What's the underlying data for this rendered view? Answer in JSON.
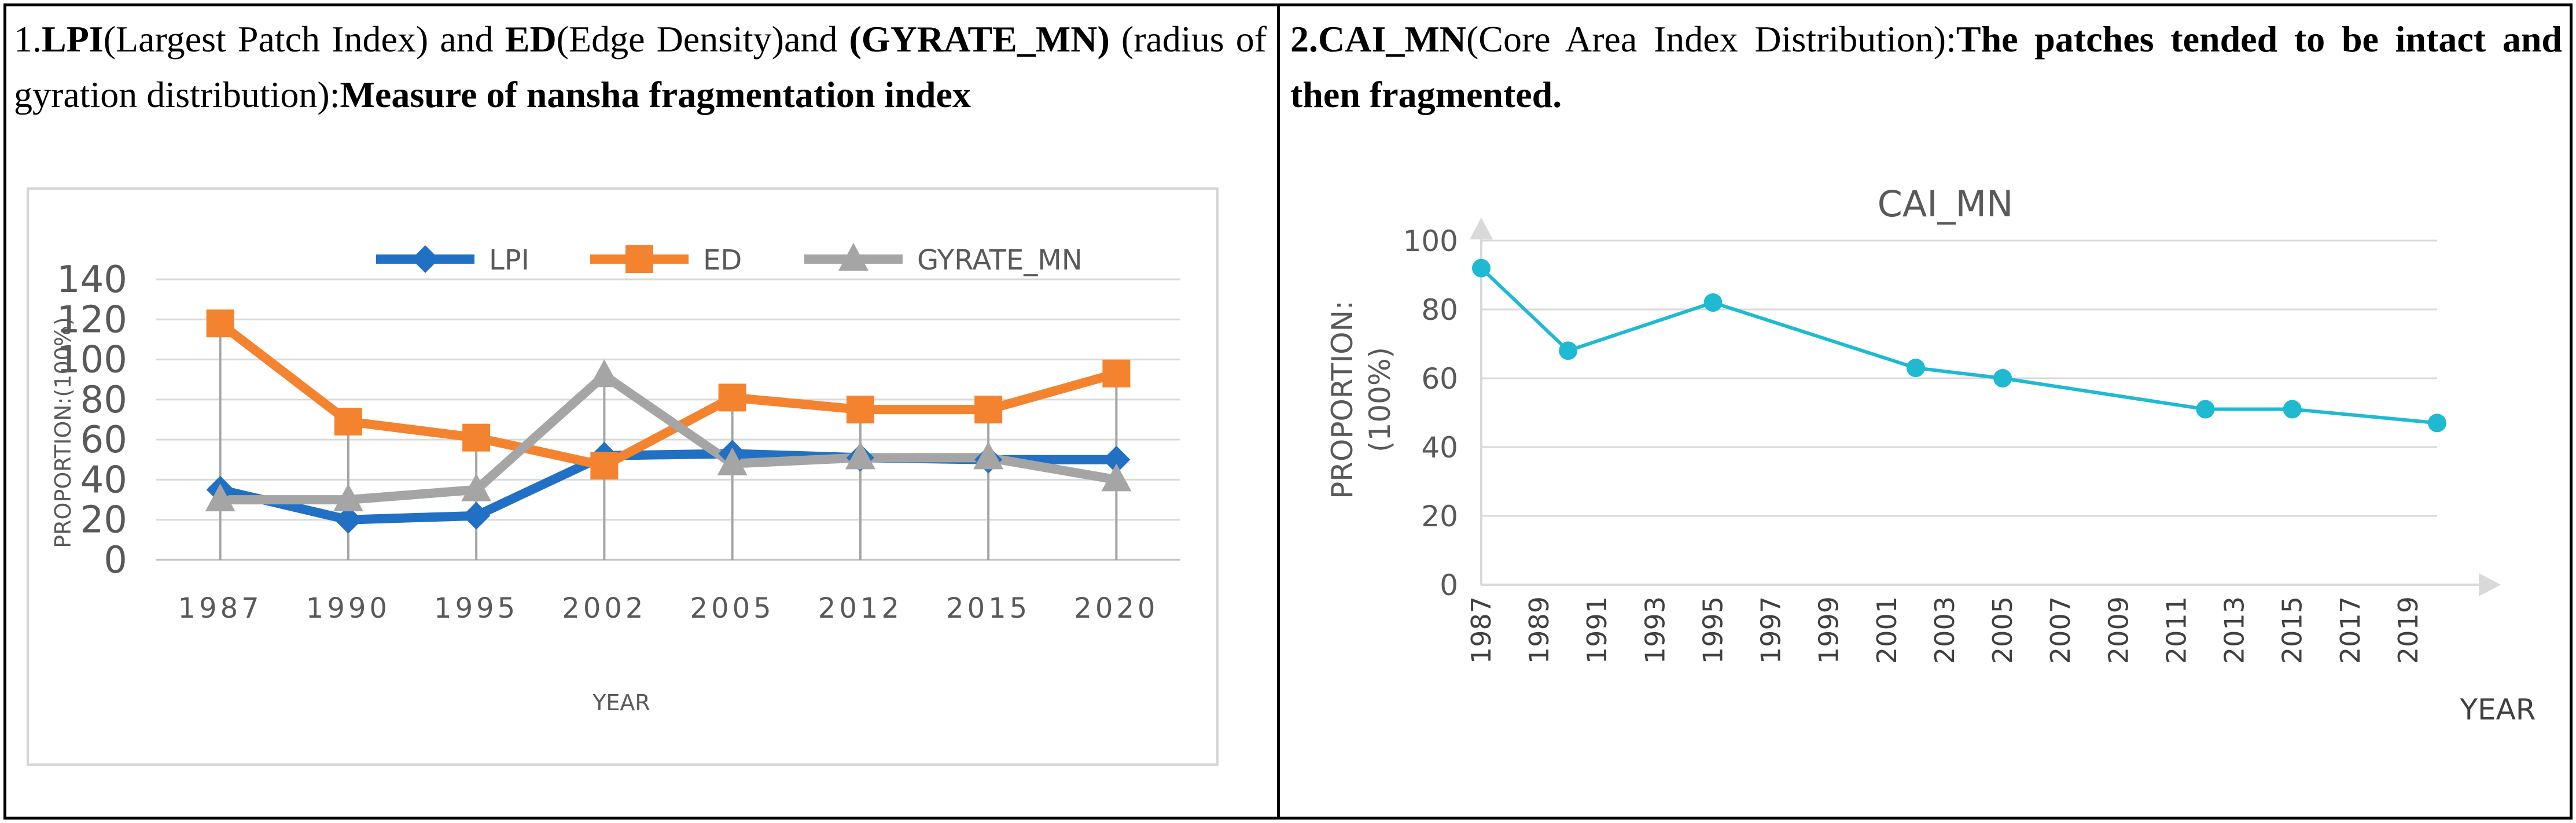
{
  "left_panel": {
    "caption": {
      "prefix": "1.",
      "lpi_abbr": "LPI",
      "lpi_full": "(Largest Patch Index) and ",
      "ed_abbr": "ED",
      "ed_full": "(Edge Density)and ",
      "gyrate_abbr": "(GYRATE_MN)",
      "gyrate_full": " (radius of gyration distribution):",
      "conclusion": "Measure of nansha fragmentation index"
    }
  },
  "right_panel": {
    "caption": {
      "prefix": "2.",
      "cai_abbr": "CAI_MN",
      "cai_full": "(Core Area Index Distribution):",
      "conclusion": "The patches tended to be intact and then fragmented."
    }
  },
  "chart_data": [
    {
      "type": "line",
      "title": "",
      "xlabel": "YEAR",
      "ylabel": "PROPORTION:(100%)",
      "categories": [
        "1987",
        "1990",
        "1995",
        "2002",
        "2005",
        "2012",
        "2015",
        "2020"
      ],
      "yticks": [
        "0",
        "20",
        "40",
        "60",
        "80",
        "100",
        "120",
        "140"
      ],
      "ylim": [
        0,
        140
      ],
      "legend_position": "top",
      "series": [
        {
          "name": "LPI",
          "color": "#2170c4",
          "marker": "diamond",
          "values": [
            35,
            20,
            22,
            52,
            53,
            51,
            50,
            50
          ]
        },
        {
          "name": "ED",
          "color": "#f48330",
          "marker": "square",
          "values": [
            118,
            69,
            61,
            47,
            81,
            75,
            75,
            93
          ]
        },
        {
          "name": "GYRATE_MN",
          "color": "#a5a5a5",
          "marker": "triangle",
          "values": [
            30,
            30,
            35,
            92,
            48,
            51,
            51,
            40
          ]
        }
      ],
      "drop_lines": true
    },
    {
      "type": "line",
      "title": "CAI_MN",
      "xlabel": "YEAR",
      "ylabel_line1": "PROPORTION:",
      "ylabel_line2": "(100%)",
      "xticks": [
        "1987",
        "1989",
        "1991",
        "1993",
        "1995",
        "1997",
        "1999",
        "2001",
        "2003",
        "2005",
        "2007",
        "2009",
        "2011",
        "2013",
        "2015",
        "2017",
        "2019"
      ],
      "yticks": [
        "0",
        "20",
        "40",
        "60",
        "80",
        "100"
      ],
      "ylim": [
        0,
        100
      ],
      "xlim": [
        1987,
        2020
      ],
      "grid": true,
      "series": [
        {
          "name": "CAI_MN",
          "color": "#1fb9d1",
          "x": [
            1987,
            1990,
            1995,
            2002,
            2005,
            2012,
            2015,
            2020
          ],
          "values": [
            92,
            68,
            82,
            63,
            60,
            51,
            51,
            47
          ]
        }
      ]
    }
  ]
}
